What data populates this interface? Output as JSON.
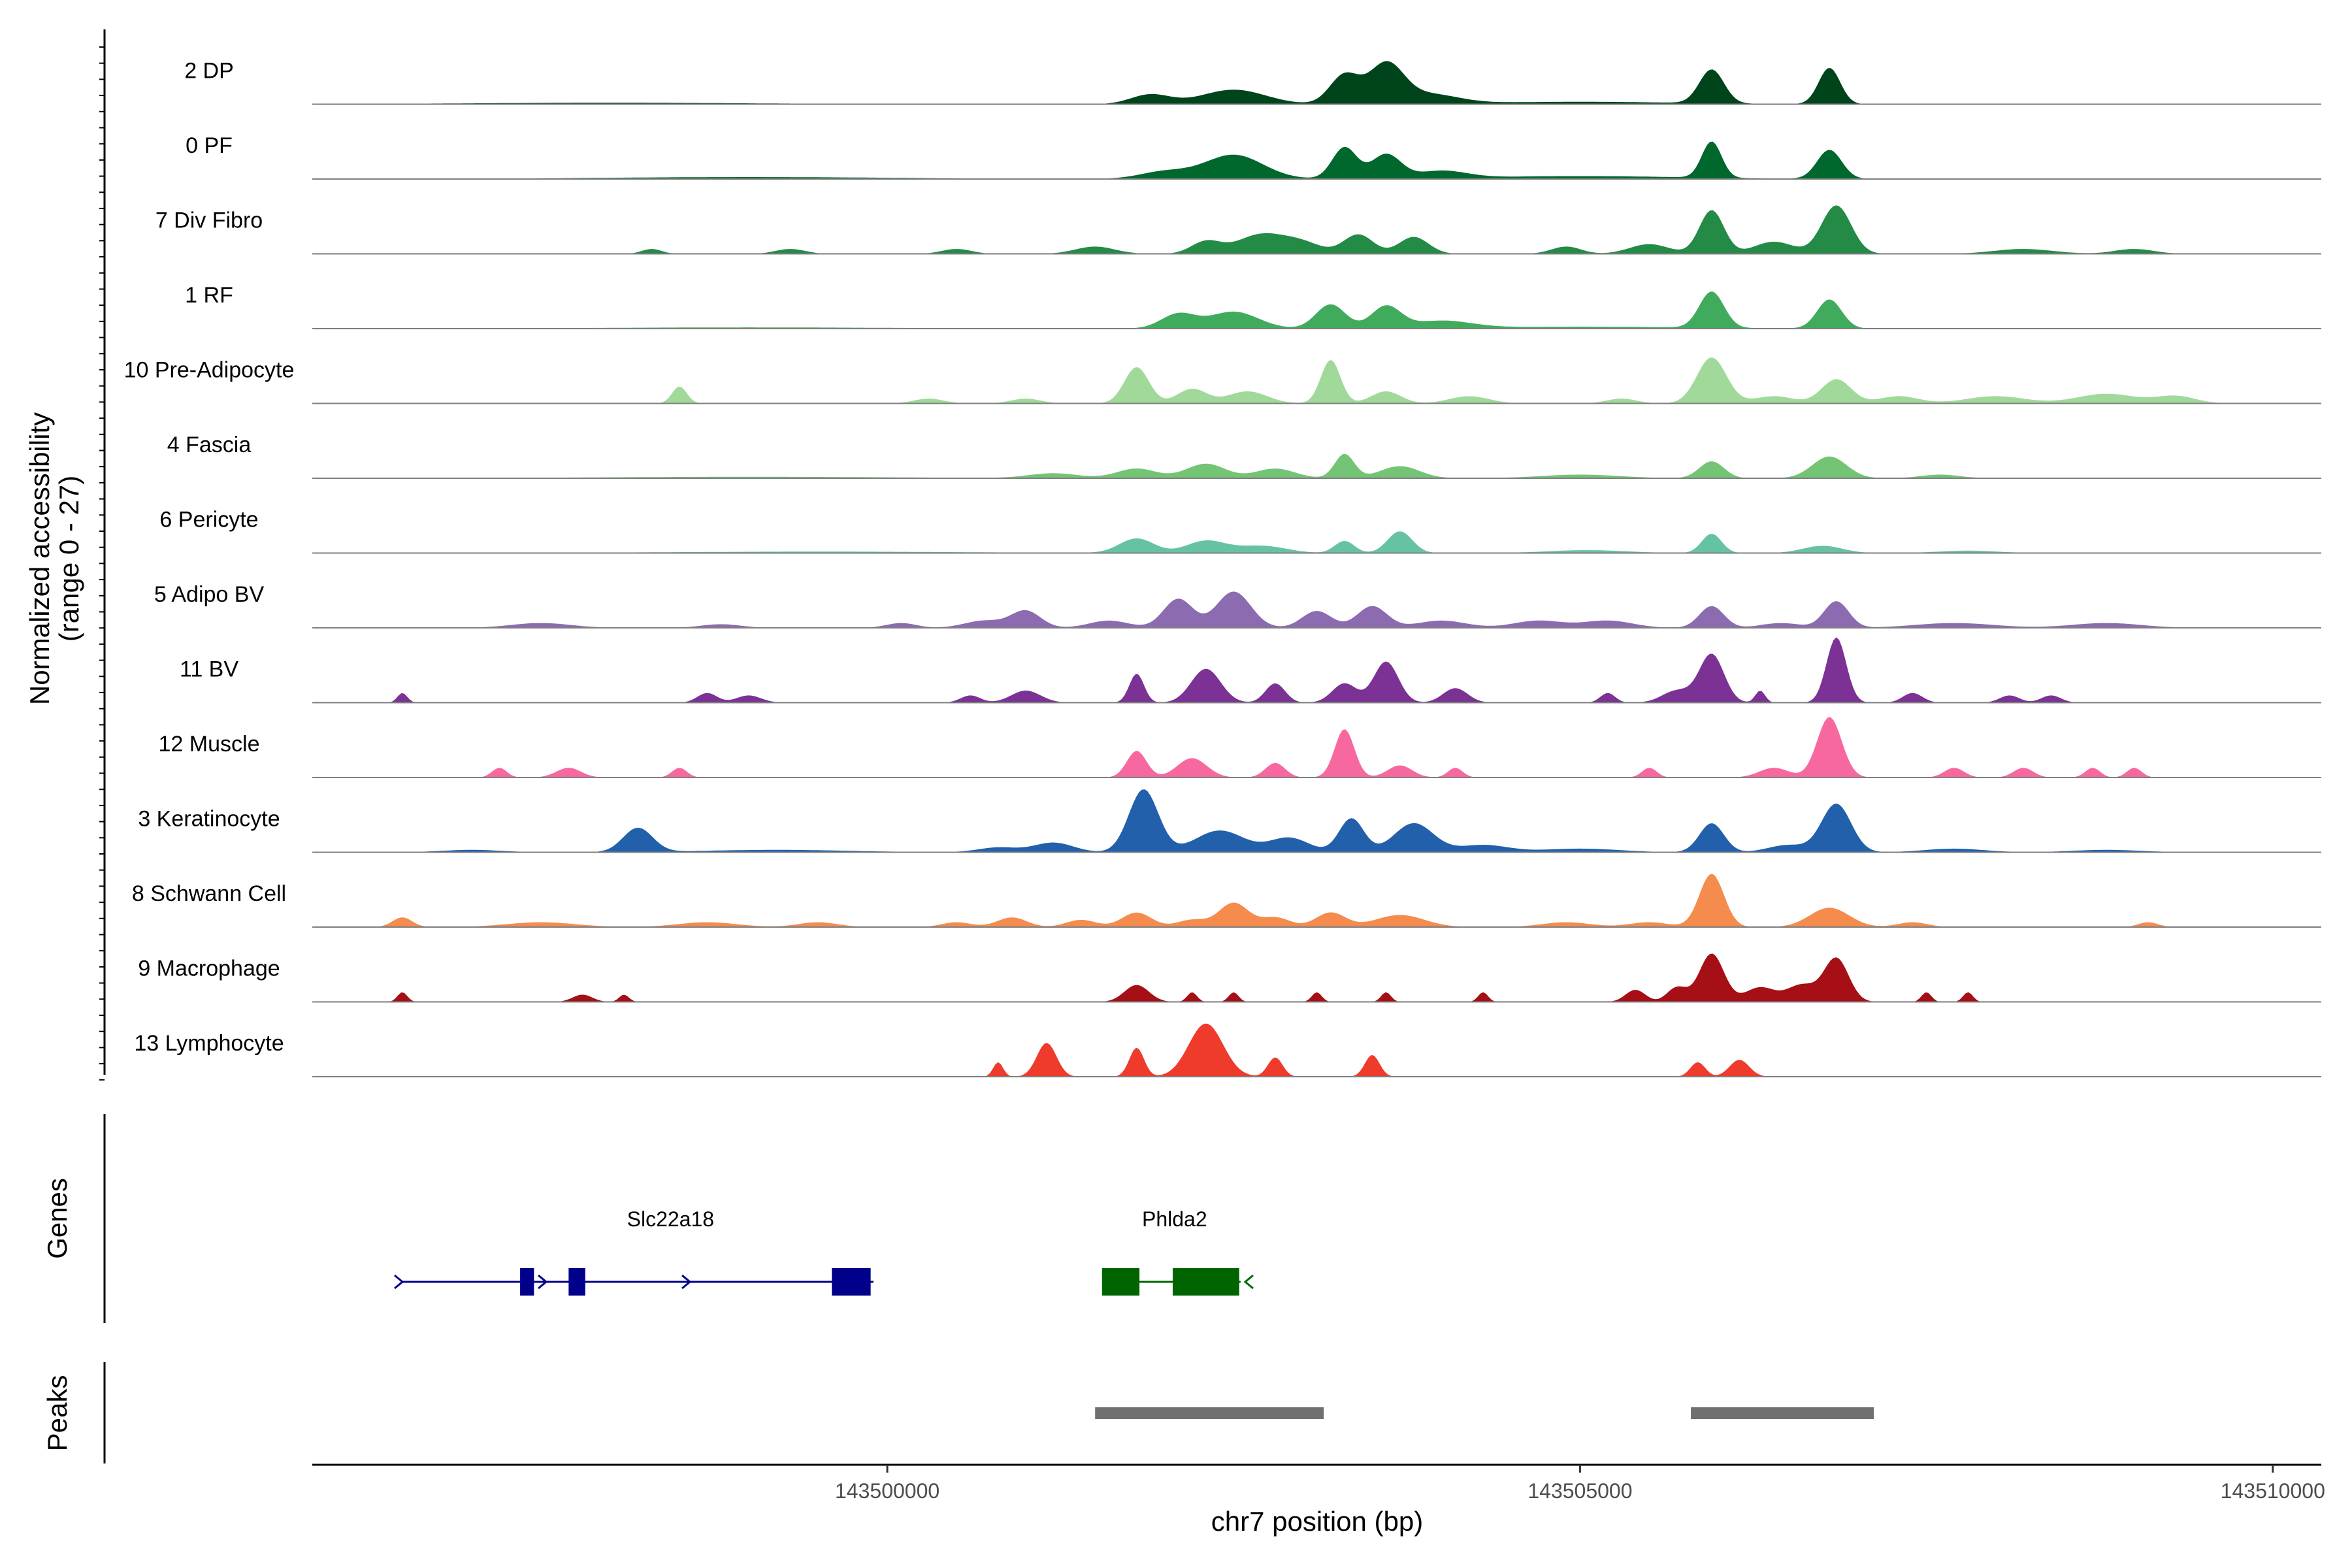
{
  "chart_data": {
    "type": "area",
    "xlabel": "chr7 position (bp)",
    "ylabel": "Normalized accessibility",
    "ylabel_range": "(range 0 - 27)",
    "ylim": [
      0,
      27
    ],
    "xlim": [
      143495850,
      143510350
    ],
    "x_ticks": [
      {
        "value": 143500000,
        "label": "143500000"
      },
      {
        "value": 143505000,
        "label": "143505000"
      },
      {
        "value": 143510000,
        "label": "143510000"
      }
    ],
    "grid": false,
    "series": [
      {
        "name": "2 DP",
        "color": "#00441b",
        "peaks": [
          [
            143501900,
            400,
            4
          ],
          [
            143502500,
            650,
            6
          ],
          [
            143503300,
            300,
            12
          ],
          [
            143503600,
            350,
            16
          ],
          [
            143503900,
            600,
            4
          ],
          [
            143505950,
            250,
            14
          ],
          [
            143506800,
            220,
            15
          ],
          [
            143505000,
            2000,
            1
          ],
          [
            143498000,
            3000,
            0.6
          ]
        ]
      },
      {
        "name": "0 PF",
        "color": "#00682d",
        "peaks": [
          [
            143502000,
            500,
            3
          ],
          [
            143502500,
            600,
            10
          ],
          [
            143503300,
            250,
            13
          ],
          [
            143503600,
            300,
            10
          ],
          [
            143504000,
            500,
            3
          ],
          [
            143505950,
            200,
            15
          ],
          [
            143506800,
            250,
            12
          ],
          [
            143505000,
            2200,
            1.2
          ],
          [
            143499000,
            3000,
            0.8
          ]
        ]
      },
      {
        "name": "7 Div Fibro",
        "color": "#238b45",
        "peaks": [
          [
            143498300,
            200,
            2
          ],
          [
            143499300,
            300,
            2
          ],
          [
            143500500,
            300,
            2
          ],
          [
            143501500,
            400,
            3
          ],
          [
            143502300,
            300,
            5
          ],
          [
            143502700,
            500,
            8
          ],
          [
            143503000,
            400,
            4
          ],
          [
            143503400,
            300,
            8
          ],
          [
            143503800,
            300,
            7
          ],
          [
            143504900,
            300,
            3
          ],
          [
            143505500,
            400,
            4
          ],
          [
            143505950,
            250,
            18
          ],
          [
            143506400,
            400,
            5
          ],
          [
            143506850,
            300,
            20
          ],
          [
            143508200,
            600,
            2
          ],
          [
            143509000,
            400,
            2
          ]
        ]
      },
      {
        "name": "1 RF",
        "color": "#41ab5d",
        "peaks": [
          [
            143502100,
            350,
            6
          ],
          [
            143502500,
            500,
            7
          ],
          [
            143503200,
            300,
            10
          ],
          [
            143503600,
            300,
            9
          ],
          [
            143504000,
            600,
            3
          ],
          [
            143505950,
            250,
            15
          ],
          [
            143506800,
            250,
            12
          ],
          [
            143505000,
            2200,
            0.8
          ],
          [
            143499000,
            3000,
            0.5
          ]
        ]
      },
      {
        "name": "10 Pre-Adipocyte",
        "color": "#a1d99b",
        "peaks": [
          [
            143498500,
            150,
            7
          ],
          [
            143500300,
            300,
            2
          ],
          [
            143501000,
            300,
            2
          ],
          [
            143501800,
            250,
            15
          ],
          [
            143502200,
            300,
            6
          ],
          [
            143502600,
            400,
            5
          ],
          [
            143503200,
            200,
            18
          ],
          [
            143503600,
            300,
            5
          ],
          [
            143504200,
            400,
            3
          ],
          [
            143505300,
            300,
            2
          ],
          [
            143505950,
            300,
            19
          ],
          [
            143506400,
            400,
            3
          ],
          [
            143506850,
            300,
            10
          ],
          [
            143507300,
            400,
            3
          ],
          [
            143508000,
            600,
            3
          ],
          [
            143508800,
            600,
            4
          ],
          [
            143509300,
            400,
            3
          ]
        ]
      },
      {
        "name": "4 Fascia",
        "color": "#74c476",
        "peaks": [
          [
            143501200,
            500,
            2
          ],
          [
            143501800,
            400,
            4
          ],
          [
            143502300,
            400,
            6
          ],
          [
            143502800,
            400,
            4
          ],
          [
            143503300,
            200,
            10
          ],
          [
            143503700,
            400,
            5
          ],
          [
            143505000,
            800,
            1.5
          ],
          [
            143505950,
            250,
            7
          ],
          [
            143506800,
            350,
            9
          ],
          [
            143507600,
            400,
            1.5
          ],
          [
            143499000,
            3000,
            0.6
          ]
        ]
      },
      {
        "name": "6 Pericyte",
        "color": "#66c2a4",
        "peaks": [
          [
            143501800,
            350,
            6
          ],
          [
            143502300,
            400,
            5
          ],
          [
            143502700,
            500,
            3
          ],
          [
            143503300,
            200,
            5
          ],
          [
            143503700,
            250,
            9
          ],
          [
            143505050,
            800,
            1.2
          ],
          [
            143505950,
            200,
            8
          ],
          [
            143506750,
            400,
            3
          ],
          [
            143507800,
            600,
            1
          ],
          [
            143499500,
            3000,
            0.6
          ]
        ]
      },
      {
        "name": "5 Adipo BV",
        "color": "#8c6bb1",
        "peaks": [
          [
            143497500,
            600,
            2
          ],
          [
            143498800,
            400,
            1.5
          ],
          [
            143500100,
            300,
            2
          ],
          [
            143500700,
            400,
            3
          ],
          [
            143501000,
            300,
            7
          ],
          [
            143501600,
            400,
            3
          ],
          [
            143502100,
            300,
            12
          ],
          [
            143502500,
            350,
            15
          ],
          [
            143503100,
            300,
            7
          ],
          [
            143503500,
            300,
            9
          ],
          [
            143504000,
            500,
            3
          ],
          [
            143504700,
            500,
            3
          ],
          [
            143505200,
            500,
            3
          ],
          [
            143505950,
            250,
            9
          ],
          [
            143506450,
            400,
            2
          ],
          [
            143506850,
            250,
            11
          ],
          [
            143507700,
            800,
            2
          ],
          [
            143508800,
            700,
            2
          ]
        ]
      },
      {
        "name": "11 BV",
        "color": "#7b3294",
        "peaks": [
          [
            143496500,
            100,
            4
          ],
          [
            143498700,
            200,
            4
          ],
          [
            143499000,
            250,
            3
          ],
          [
            143500600,
            200,
            3
          ],
          [
            143501000,
            300,
            5
          ],
          [
            143501800,
            150,
            12
          ],
          [
            143502300,
            300,
            14
          ],
          [
            143502800,
            200,
            8
          ],
          [
            143503300,
            250,
            8
          ],
          [
            143503600,
            250,
            17
          ],
          [
            143504100,
            250,
            6
          ],
          [
            143505200,
            150,
            4
          ],
          [
            143505700,
            300,
            5
          ],
          [
            143505950,
            250,
            20
          ],
          [
            143506300,
            100,
            5
          ],
          [
            143506850,
            200,
            27
          ],
          [
            143507400,
            200,
            4
          ],
          [
            143508100,
            200,
            3
          ],
          [
            143508400,
            200,
            3
          ]
        ]
      },
      {
        "name": "12 Muscle",
        "color": "#f768a1",
        "peaks": [
          [
            143497200,
            150,
            4
          ],
          [
            143497700,
            250,
            4
          ],
          [
            143498500,
            150,
            4
          ],
          [
            143501800,
            200,
            11
          ],
          [
            143502200,
            300,
            8
          ],
          [
            143502800,
            200,
            6
          ],
          [
            143503300,
            200,
            20
          ],
          [
            143503700,
            250,
            5
          ],
          [
            143504100,
            150,
            4
          ],
          [
            143505500,
            150,
            4
          ],
          [
            143506400,
            300,
            4
          ],
          [
            143506800,
            250,
            25
          ],
          [
            143507700,
            200,
            4
          ],
          [
            143508200,
            200,
            4
          ],
          [
            143508700,
            150,
            4
          ],
          [
            143509000,
            150,
            4
          ]
        ]
      },
      {
        "name": "3 Keratinocyte",
        "color": "#2260ab",
        "peaks": [
          [
            143498200,
            300,
            10
          ],
          [
            143497000,
            600,
            1
          ],
          [
            143499200,
            1500,
            1
          ],
          [
            143500800,
            400,
            2
          ],
          [
            143501200,
            400,
            4
          ],
          [
            143501850,
            300,
            26
          ],
          [
            143502400,
            500,
            9
          ],
          [
            143502900,
            400,
            6
          ],
          [
            143503350,
            250,
            14
          ],
          [
            143503800,
            400,
            12
          ],
          [
            143504300,
            500,
            3
          ],
          [
            143505000,
            800,
            1.5
          ],
          [
            143505950,
            250,
            12
          ],
          [
            143506500,
            400,
            3
          ],
          [
            143506850,
            300,
            20
          ],
          [
            143507700,
            600,
            1.5
          ],
          [
            143508800,
            700,
            1
          ]
        ]
      },
      {
        "name": "8 Schwann Cell",
        "color": "#f58b4c",
        "peaks": [
          [
            143496500,
            200,
            4
          ],
          [
            143497500,
            700,
            2
          ],
          [
            143498700,
            600,
            2
          ],
          [
            143499500,
            400,
            2
          ],
          [
            143500500,
            300,
            2
          ],
          [
            143500900,
            300,
            4
          ],
          [
            143501400,
            300,
            3
          ],
          [
            143501800,
            300,
            6
          ],
          [
            143502200,
            300,
            3
          ],
          [
            143502500,
            300,
            10
          ],
          [
            143502800,
            300,
            4
          ],
          [
            143503200,
            300,
            6
          ],
          [
            143503700,
            500,
            5
          ],
          [
            143504900,
            500,
            2
          ],
          [
            143505500,
            400,
            2
          ],
          [
            143505950,
            250,
            22
          ],
          [
            143506800,
            400,
            8
          ],
          [
            143507400,
            300,
            2
          ],
          [
            143509100,
            200,
            2
          ]
        ]
      },
      {
        "name": "9 Macrophage",
        "color": "#a50f15",
        "peaks": [
          [
            143496500,
            100,
            4
          ],
          [
            143497800,
            200,
            3
          ],
          [
            143498100,
            100,
            3
          ],
          [
            143501800,
            250,
            7
          ],
          [
            143502200,
            100,
            4
          ],
          [
            143502500,
            100,
            4
          ],
          [
            143503100,
            100,
            4
          ],
          [
            143503600,
            100,
            4
          ],
          [
            143504300,
            100,
            4
          ],
          [
            143505400,
            200,
            5
          ],
          [
            143505700,
            200,
            6
          ],
          [
            143505950,
            250,
            20
          ],
          [
            143506300,
            300,
            6
          ],
          [
            143506600,
            300,
            7
          ],
          [
            143506850,
            250,
            18
          ],
          [
            143507500,
            100,
            4
          ],
          [
            143507800,
            100,
            4
          ]
        ]
      },
      {
        "name": "13 Lymphocyte",
        "color": "#ef3b2c",
        "peaks": [
          [
            143500800,
            100,
            6
          ],
          [
            143501150,
            200,
            14
          ],
          [
            143501800,
            150,
            12
          ],
          [
            143502300,
            350,
            22
          ],
          [
            143502800,
            150,
            8
          ],
          [
            143503500,
            150,
            9
          ],
          [
            143505850,
            150,
            6
          ],
          [
            143506150,
            200,
            7
          ]
        ]
      }
    ],
    "genes": [
      {
        "name": "Slc22a18",
        "color": "#00008b",
        "start": 143496500,
        "end": 143499900,
        "strand": "+",
        "exons": [
          [
            143497350,
            143497450
          ],
          [
            143497700,
            143497820
          ],
          [
            143499600,
            143499880
          ]
        ]
      },
      {
        "name": "Phlda2",
        "color": "#006400",
        "start": 143501550,
        "end": 143502550,
        "strand": "-",
        "exons": [
          [
            143501550,
            143501820
          ],
          [
            143502060,
            143502540
          ]
        ]
      }
    ],
    "peak_regions": [
      [
        143501500,
        143503150
      ],
      [
        143505800,
        143507120
      ]
    ]
  },
  "panel_titles": {
    "genes": "Genes",
    "peaks": "Peaks"
  }
}
